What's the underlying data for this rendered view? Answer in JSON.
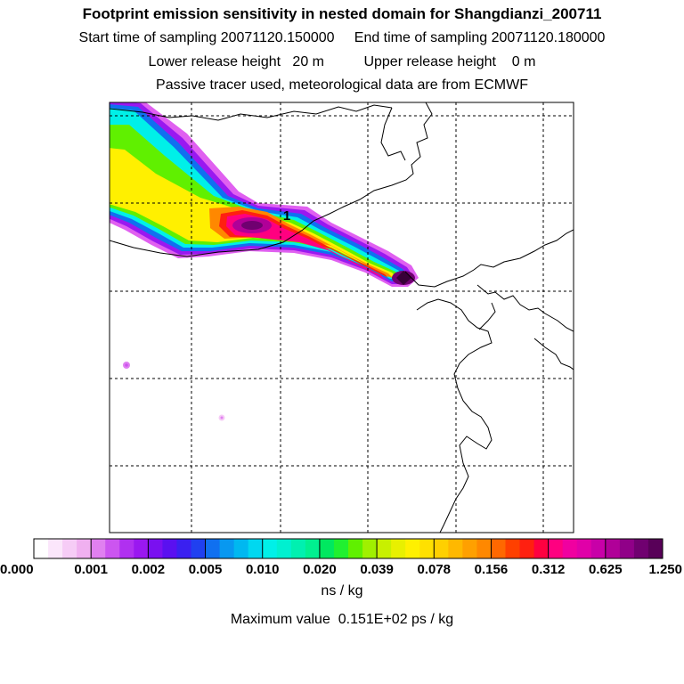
{
  "header": {
    "title": "Footprint emission sensitivity in nested domain for Shangdianzi_200711",
    "line1": "Start time of sampling 20071120.150000     End time of sampling 20071120.180000",
    "line2": "Lower release height   20 m          Upper release height    0 m",
    "line3": "Passive tracer used, meteorological data are from ECMWF"
  },
  "chart_data": {
    "type": "heatmap",
    "title": "Footprint emission sensitivity in nested domain for Shangdianzi_200711",
    "colorbar": {
      "units": "ns / kg",
      "ticks": [
        "0.000",
        "0.001",
        "0.002",
        "0.005",
        "0.010",
        "0.020",
        "0.039",
        "0.078",
        "0.156",
        "0.312",
        "0.625",
        "1.250"
      ],
      "colors": [
        "#ffffff",
        "#fbe6fb",
        "#f6ccf6",
        "#f0b0f0",
        "#e080f0",
        "#cc55f0",
        "#b030f0",
        "#9a18f0",
        "#7a10f0",
        "#5a10f0",
        "#3a20f0",
        "#2040f0",
        "#1070f0",
        "#0898f0",
        "#00b8f0",
        "#00d8f0",
        "#00f0e8",
        "#00f0d0",
        "#00f0b0",
        "#00f090",
        "#00e860",
        "#20f030",
        "#60f000",
        "#a0f000",
        "#c8f000",
        "#e8f000",
        "#fff000",
        "#ffe000",
        "#ffd000",
        "#ffb800",
        "#ffa000",
        "#ff8800",
        "#ff6800",
        "#ff4000",
        "#ff2010",
        "#ff0040",
        "#ff0080",
        "#f000a0",
        "#e000a8",
        "#c800a8",
        "#b00098",
        "#900088",
        "#700070",
        "#580058"
      ]
    },
    "annotations": [
      "1"
    ],
    "max_value": "Maximum value  0.151E+02 ps / kg"
  }
}
